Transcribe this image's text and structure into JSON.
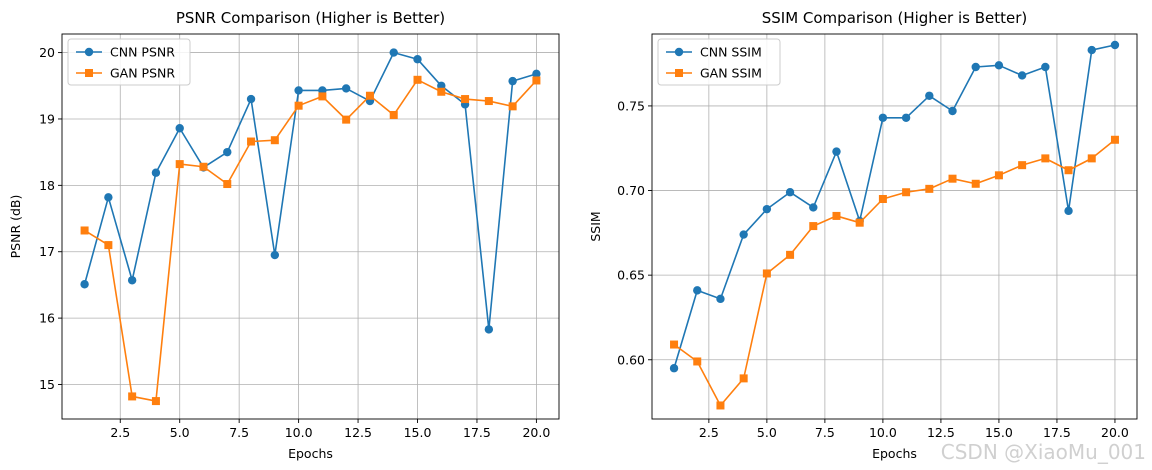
{
  "watermark": "CSDN @XiaoMu_001",
  "colors": {
    "cnn": "#1f77b4",
    "gan": "#ff7f0e",
    "grid": "#b0b0b0",
    "axis": "#000000"
  },
  "chart_data": [
    {
      "type": "line",
      "title": "PSNR Comparison (Higher is Better)",
      "xlabel": "Epochs",
      "ylabel": "PSNR (dB)",
      "xlim": [
        0.05,
        20.95
      ],
      "ylim": [
        14.48,
        20.28
      ],
      "xticks": [
        2.5,
        5.0,
        7.5,
        10.0,
        12.5,
        15.0,
        17.5,
        20.0
      ],
      "xtick_labels": [
        "2.5",
        "5.0",
        "7.5",
        "10.0",
        "12.5",
        "15.0",
        "17.5",
        "20.0"
      ],
      "yticks": [
        15,
        16,
        17,
        18,
        19,
        20
      ],
      "ytick_labels": [
        "15",
        "16",
        "17",
        "18",
        "19",
        "20"
      ],
      "grid": true,
      "legend": "top-left",
      "x": [
        1,
        2,
        3,
        4,
        5,
        6,
        7,
        8,
        9,
        10,
        11,
        12,
        13,
        14,
        15,
        16,
        17,
        18,
        19,
        20
      ],
      "series": [
        {
          "name": "CNN PSNR",
          "marker": "circle",
          "color": "#1f77b4",
          "values": [
            16.51,
            17.82,
            16.57,
            18.19,
            18.86,
            18.27,
            18.5,
            19.3,
            16.95,
            19.43,
            19.43,
            19.46,
            19.27,
            20.0,
            19.9,
            19.5,
            19.22,
            15.83,
            19.57,
            19.68
          ]
        },
        {
          "name": "GAN PSNR",
          "marker": "square",
          "color": "#ff7f0e",
          "values": [
            17.32,
            17.1,
            14.82,
            14.75,
            18.32,
            18.28,
            18.02,
            18.66,
            18.68,
            19.2,
            19.34,
            18.99,
            19.35,
            19.06,
            19.59,
            19.41,
            19.3,
            19.27,
            19.19,
            19.58
          ]
        }
      ]
    },
    {
      "type": "line",
      "title": "SSIM Comparison (Higher is Better)",
      "xlabel": "Epochs",
      "ylabel": "SSIM",
      "xlim": [
        0.05,
        20.95
      ],
      "ylim": [
        0.565,
        0.7925
      ],
      "xticks": [
        2.5,
        5.0,
        7.5,
        10.0,
        12.5,
        15.0,
        17.5,
        20.0
      ],
      "xtick_labels": [
        "2.5",
        "5.0",
        "7.5",
        "10.0",
        "12.5",
        "15.0",
        "17.5",
        "20.0"
      ],
      "yticks": [
        0.6,
        0.65,
        0.7,
        0.75
      ],
      "ytick_labels": [
        "0.60",
        "0.65",
        "0.70",
        "0.75"
      ],
      "grid": true,
      "legend": "top-left",
      "x": [
        1,
        2,
        3,
        4,
        5,
        6,
        7,
        8,
        9,
        10,
        11,
        12,
        13,
        14,
        15,
        16,
        17,
        18,
        19,
        20
      ],
      "series": [
        {
          "name": "CNN SSIM",
          "marker": "circle",
          "color": "#1f77b4",
          "values": [
            0.595,
            0.641,
            0.636,
            0.674,
            0.689,
            0.699,
            0.69,
            0.723,
            0.682,
            0.743,
            0.743,
            0.756,
            0.747,
            0.773,
            0.774,
            0.768,
            0.773,
            0.688,
            0.783,
            0.786
          ]
        },
        {
          "name": "GAN SSIM",
          "marker": "square",
          "color": "#ff7f0e",
          "values": [
            0.609,
            0.599,
            0.573,
            0.589,
            0.651,
            0.662,
            0.679,
            0.685,
            0.681,
            0.695,
            0.699,
            0.701,
            0.707,
            0.704,
            0.709,
            0.715,
            0.719,
            0.712,
            0.719,
            0.73
          ]
        }
      ]
    }
  ]
}
